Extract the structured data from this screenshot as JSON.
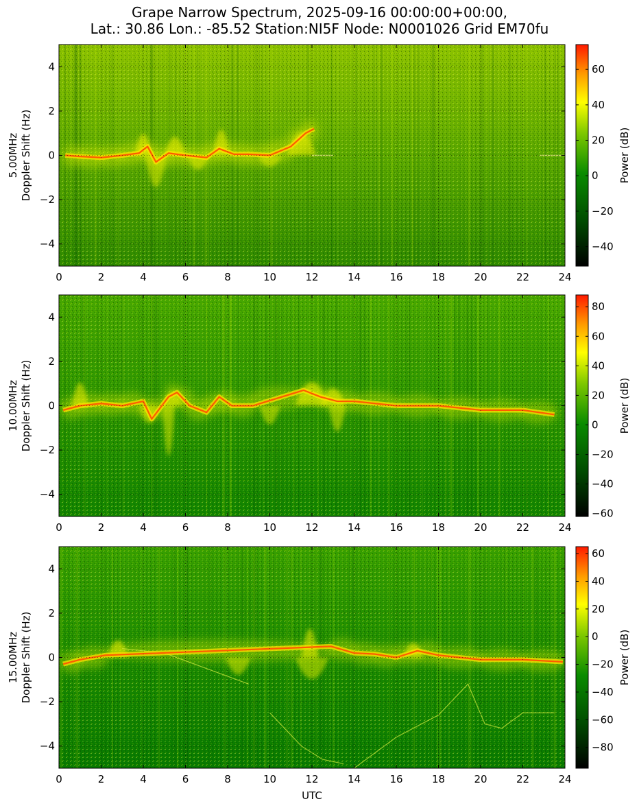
{
  "figure": {
    "title_line1": "Grape Narrow Spectrum, 2025-09-16 00:00:00+00:00,",
    "title_line2": "Lat.: 30.86 Lon.: -85.52 Station:NI5F Node: N0001026 Grid EM70fu"
  },
  "chart_data": [
    {
      "type": "heatmap",
      "ylabel_line1": "5.00MHz",
      "ylabel_line2": "Doppler Shift (Hz)",
      "xlabel": "",
      "xlim": [
        0,
        24
      ],
      "ylim": [
        -5,
        5
      ],
      "xticks": [
        0,
        2,
        4,
        6,
        8,
        10,
        12,
        14,
        16,
        18,
        20,
        22,
        24
      ],
      "yticks": [
        -4,
        -2,
        0,
        2,
        4
      ],
      "grid": true,
      "colorbar_label": "Power (dB)",
      "colorbar_range": [
        -51,
        74
      ],
      "colorbar_ticks": [
        -40,
        -20,
        0,
        20,
        40,
        60
      ],
      "background_colors": [
        "#2e8a00",
        "#5aa800",
        "#8cc200"
      ],
      "trace": [
        [
          0.3,
          0.0
        ],
        [
          1.0,
          -0.05
        ],
        [
          2.0,
          -0.1
        ],
        [
          3.0,
          0.0
        ],
        [
          3.8,
          0.1
        ],
        [
          4.2,
          0.4
        ],
        [
          4.6,
          -0.3
        ],
        [
          5.2,
          0.1
        ],
        [
          6.0,
          0.0
        ],
        [
          7.0,
          -0.1
        ],
        [
          7.6,
          0.3
        ],
        [
          8.3,
          0.05
        ],
        [
          9.0,
          0.05
        ],
        [
          10.0,
          0.0
        ],
        [
          11.0,
          0.4
        ],
        [
          11.7,
          1.0
        ],
        [
          12.1,
          1.2
        ]
      ],
      "arches": [
        [
          4.0,
          1.5,
          0.4
        ],
        [
          5.5,
          1.3,
          0.5
        ],
        [
          7.7,
          1.8,
          0.4
        ],
        [
          11.5,
          1.6,
          0.7
        ]
      ],
      "dips": [
        [
          4.6,
          -2.2,
          0.5
        ],
        [
          6.6,
          -1.0,
          0.5
        ],
        [
          10.0,
          -0.8,
          0.6
        ]
      ],
      "carrier": [
        [
          12.0,
          0.0,
          13.0,
          0.0
        ],
        [
          22.8,
          0.0,
          24.0,
          0.0
        ]
      ]
    },
    {
      "type": "heatmap",
      "ylabel_line1": "10.00MHz",
      "ylabel_line2": "Doppler Shift (Hz)",
      "xlabel": "",
      "xlim": [
        0,
        24
      ],
      "ylim": [
        -5,
        5
      ],
      "xticks": [
        0,
        2,
        4,
        6,
        8,
        10,
        12,
        14,
        16,
        18,
        20,
        22,
        24
      ],
      "yticks": [
        -4,
        -2,
        0,
        2,
        4
      ],
      "grid": true,
      "colorbar_label": "Power (dB)",
      "colorbar_range": [
        -62,
        88
      ],
      "colorbar_ticks": [
        -60,
        -40,
        -20,
        0,
        20,
        40,
        60,
        80
      ],
      "background_colors": [
        "#118400",
        "#2a9400",
        "#48a800"
      ],
      "trace": [
        [
          0.2,
          -0.2
        ],
        [
          1.0,
          0.0
        ],
        [
          2.0,
          0.1
        ],
        [
          3.0,
          0.0
        ],
        [
          4.0,
          0.2
        ],
        [
          4.4,
          -0.6
        ],
        [
          5.2,
          0.4
        ],
        [
          5.6,
          0.6
        ],
        [
          6.2,
          0.0
        ],
        [
          7.0,
          -0.3
        ],
        [
          7.6,
          0.4
        ],
        [
          8.2,
          0.0
        ],
        [
          9.2,
          0.0
        ],
        [
          11.6,
          0.7
        ],
        [
          12.4,
          0.4
        ],
        [
          13.2,
          0.2
        ],
        [
          14.0,
          0.2
        ],
        [
          16.0,
          0.0
        ],
        [
          18.0,
          0.0
        ],
        [
          20.0,
          -0.2
        ],
        [
          22.0,
          -0.2
        ],
        [
          23.5,
          -0.4
        ]
      ],
      "arches": [
        [
          5.4,
          1.0,
          0.5
        ],
        [
          12.0,
          1.6,
          0.8
        ],
        [
          13.0,
          1.2,
          0.6
        ],
        [
          1.0,
          1.6,
          0.4
        ]
      ],
      "dips": [
        [
          4.3,
          -1.2,
          0.5
        ],
        [
          10.0,
          -1.3,
          0.5
        ],
        [
          13.2,
          -1.8,
          0.4
        ],
        [
          5.2,
          -3.5,
          0.3
        ]
      ],
      "carrier": []
    },
    {
      "type": "heatmap",
      "ylabel_line1": "15.00MHz",
      "ylabel_line2": "Doppler Shift (Hz)",
      "xlabel": "UTC",
      "xlim": [
        0,
        24
      ],
      "ylim": [
        -5,
        5
      ],
      "xticks": [
        0,
        2,
        4,
        6,
        8,
        10,
        12,
        14,
        16,
        18,
        20,
        22,
        24
      ],
      "yticks": [
        -4,
        -2,
        0,
        2,
        4
      ],
      "grid": true,
      "colorbar_label": "Power (dB)",
      "colorbar_range": [
        -95,
        65
      ],
      "colorbar_ticks": [
        -80,
        -60,
        -40,
        -20,
        0,
        20,
        40,
        60
      ],
      "background_colors": [
        "#087a00",
        "#1a8a00",
        "#38a000"
      ],
      "trace": [
        [
          0.2,
          -0.3
        ],
        [
          1.0,
          -0.1
        ],
        [
          2.2,
          0.1
        ],
        [
          12.9,
          0.5
        ],
        [
          14.0,
          0.2
        ],
        [
          15.0,
          0.15
        ],
        [
          16.0,
          0.0
        ],
        [
          17.0,
          0.3
        ],
        [
          18.0,
          0.1
        ],
        [
          20.0,
          -0.1
        ],
        [
          22.0,
          -0.1
        ],
        [
          23.9,
          -0.2
        ]
      ],
      "arches": [
        [
          11.9,
          2.0,
          0.4
        ],
        [
          16.8,
          1.0,
          0.5
        ],
        [
          2.8,
          1.2,
          0.5
        ]
      ],
      "dips": [
        [
          8.5,
          -1.2,
          0.6
        ],
        [
          12.0,
          -1.5,
          0.8
        ]
      ],
      "faint_curves": [
        [
          [
            10.0,
            -2.5
          ],
          [
            11.5,
            -4.0
          ],
          [
            12.5,
            -4.6
          ],
          [
            13.5,
            -4.8
          ]
        ],
        [
          [
            14.0,
            -5.0
          ],
          [
            16.0,
            -3.6
          ],
          [
            18.0,
            -2.6
          ],
          [
            19.4,
            -1.2
          ],
          [
            20.2,
            -3.0
          ],
          [
            21.0,
            -3.2
          ],
          [
            22.0,
            -2.5
          ],
          [
            23.5,
            -2.5
          ]
        ],
        [
          [
            3.0,
            0.4
          ],
          [
            5.0,
            0.2
          ],
          [
            7.0,
            -0.5
          ],
          [
            9.0,
            -1.2
          ]
        ]
      ],
      "carrier": []
    }
  ]
}
